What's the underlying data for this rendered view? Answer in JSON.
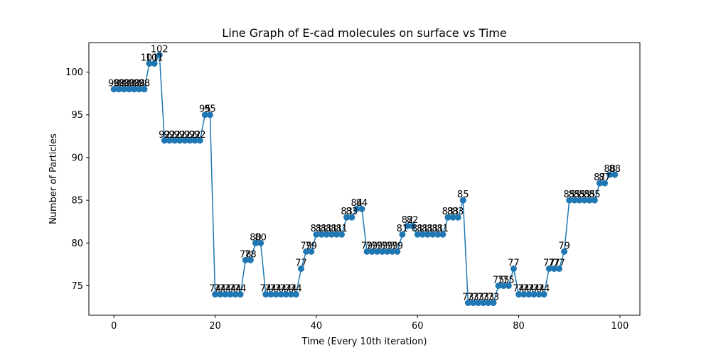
{
  "chart_data": {
    "type": "line",
    "title": "Line Graph of E-cad molecules on surface vs Time",
    "xlabel": "Time (Every 10th iteration)",
    "ylabel": "Number of Particles",
    "xlim": [
      -4.95,
      103.95
    ],
    "ylim": [
      71.55,
      103.45
    ],
    "xticks": [
      0,
      20,
      40,
      60,
      80,
      100
    ],
    "yticks": [
      75,
      80,
      85,
      90,
      95,
      100
    ],
    "grid": false,
    "line_color": "#1f77b4",
    "x": [
      0,
      1,
      2,
      3,
      4,
      5,
      6,
      7,
      8,
      9,
      10,
      11,
      12,
      13,
      14,
      15,
      16,
      17,
      18,
      19,
      20,
      21,
      22,
      23,
      24,
      25,
      26,
      27,
      28,
      29,
      30,
      31,
      32,
      33,
      34,
      35,
      36,
      37,
      38,
      39,
      40,
      41,
      42,
      43,
      44,
      45,
      46,
      47,
      48,
      49,
      50,
      51,
      52,
      53,
      54,
      55,
      56,
      57,
      58,
      59,
      60,
      61,
      62,
      63,
      64,
      65,
      66,
      67,
      68,
      69,
      70,
      71,
      72,
      73,
      74,
      75,
      76,
      77,
      78,
      79,
      80,
      81,
      82,
      83,
      84,
      85,
      86,
      87,
      88,
      89,
      90,
      91,
      92,
      93,
      94,
      95,
      96,
      97,
      98,
      99
    ],
    "series": [
      {
        "values": [
          98,
          98,
          98,
          98,
          98,
          98,
          98,
          101,
          101,
          102,
          92,
          92,
          92,
          92,
          92,
          92,
          92,
          92,
          95,
          95,
          74,
          74,
          74,
          74,
          74,
          74,
          78,
          78,
          80,
          80,
          74,
          74,
          74,
          74,
          74,
          74,
          74,
          77,
          79,
          79,
          81,
          81,
          81,
          81,
          81,
          81,
          83,
          83,
          84,
          84,
          79,
          79,
          79,
          79,
          79,
          79,
          79,
          81,
          82,
          82,
          81,
          81,
          81,
          81,
          81,
          81,
          83,
          83,
          83,
          85,
          73,
          73,
          73,
          73,
          73,
          73,
          75,
          75,
          75,
          77,
          74,
          74,
          74,
          74,
          74,
          74,
          77,
          77,
          77,
          79,
          85,
          85,
          85,
          85,
          85,
          85,
          87,
          87,
          88,
          88
        ]
      }
    ]
  }
}
